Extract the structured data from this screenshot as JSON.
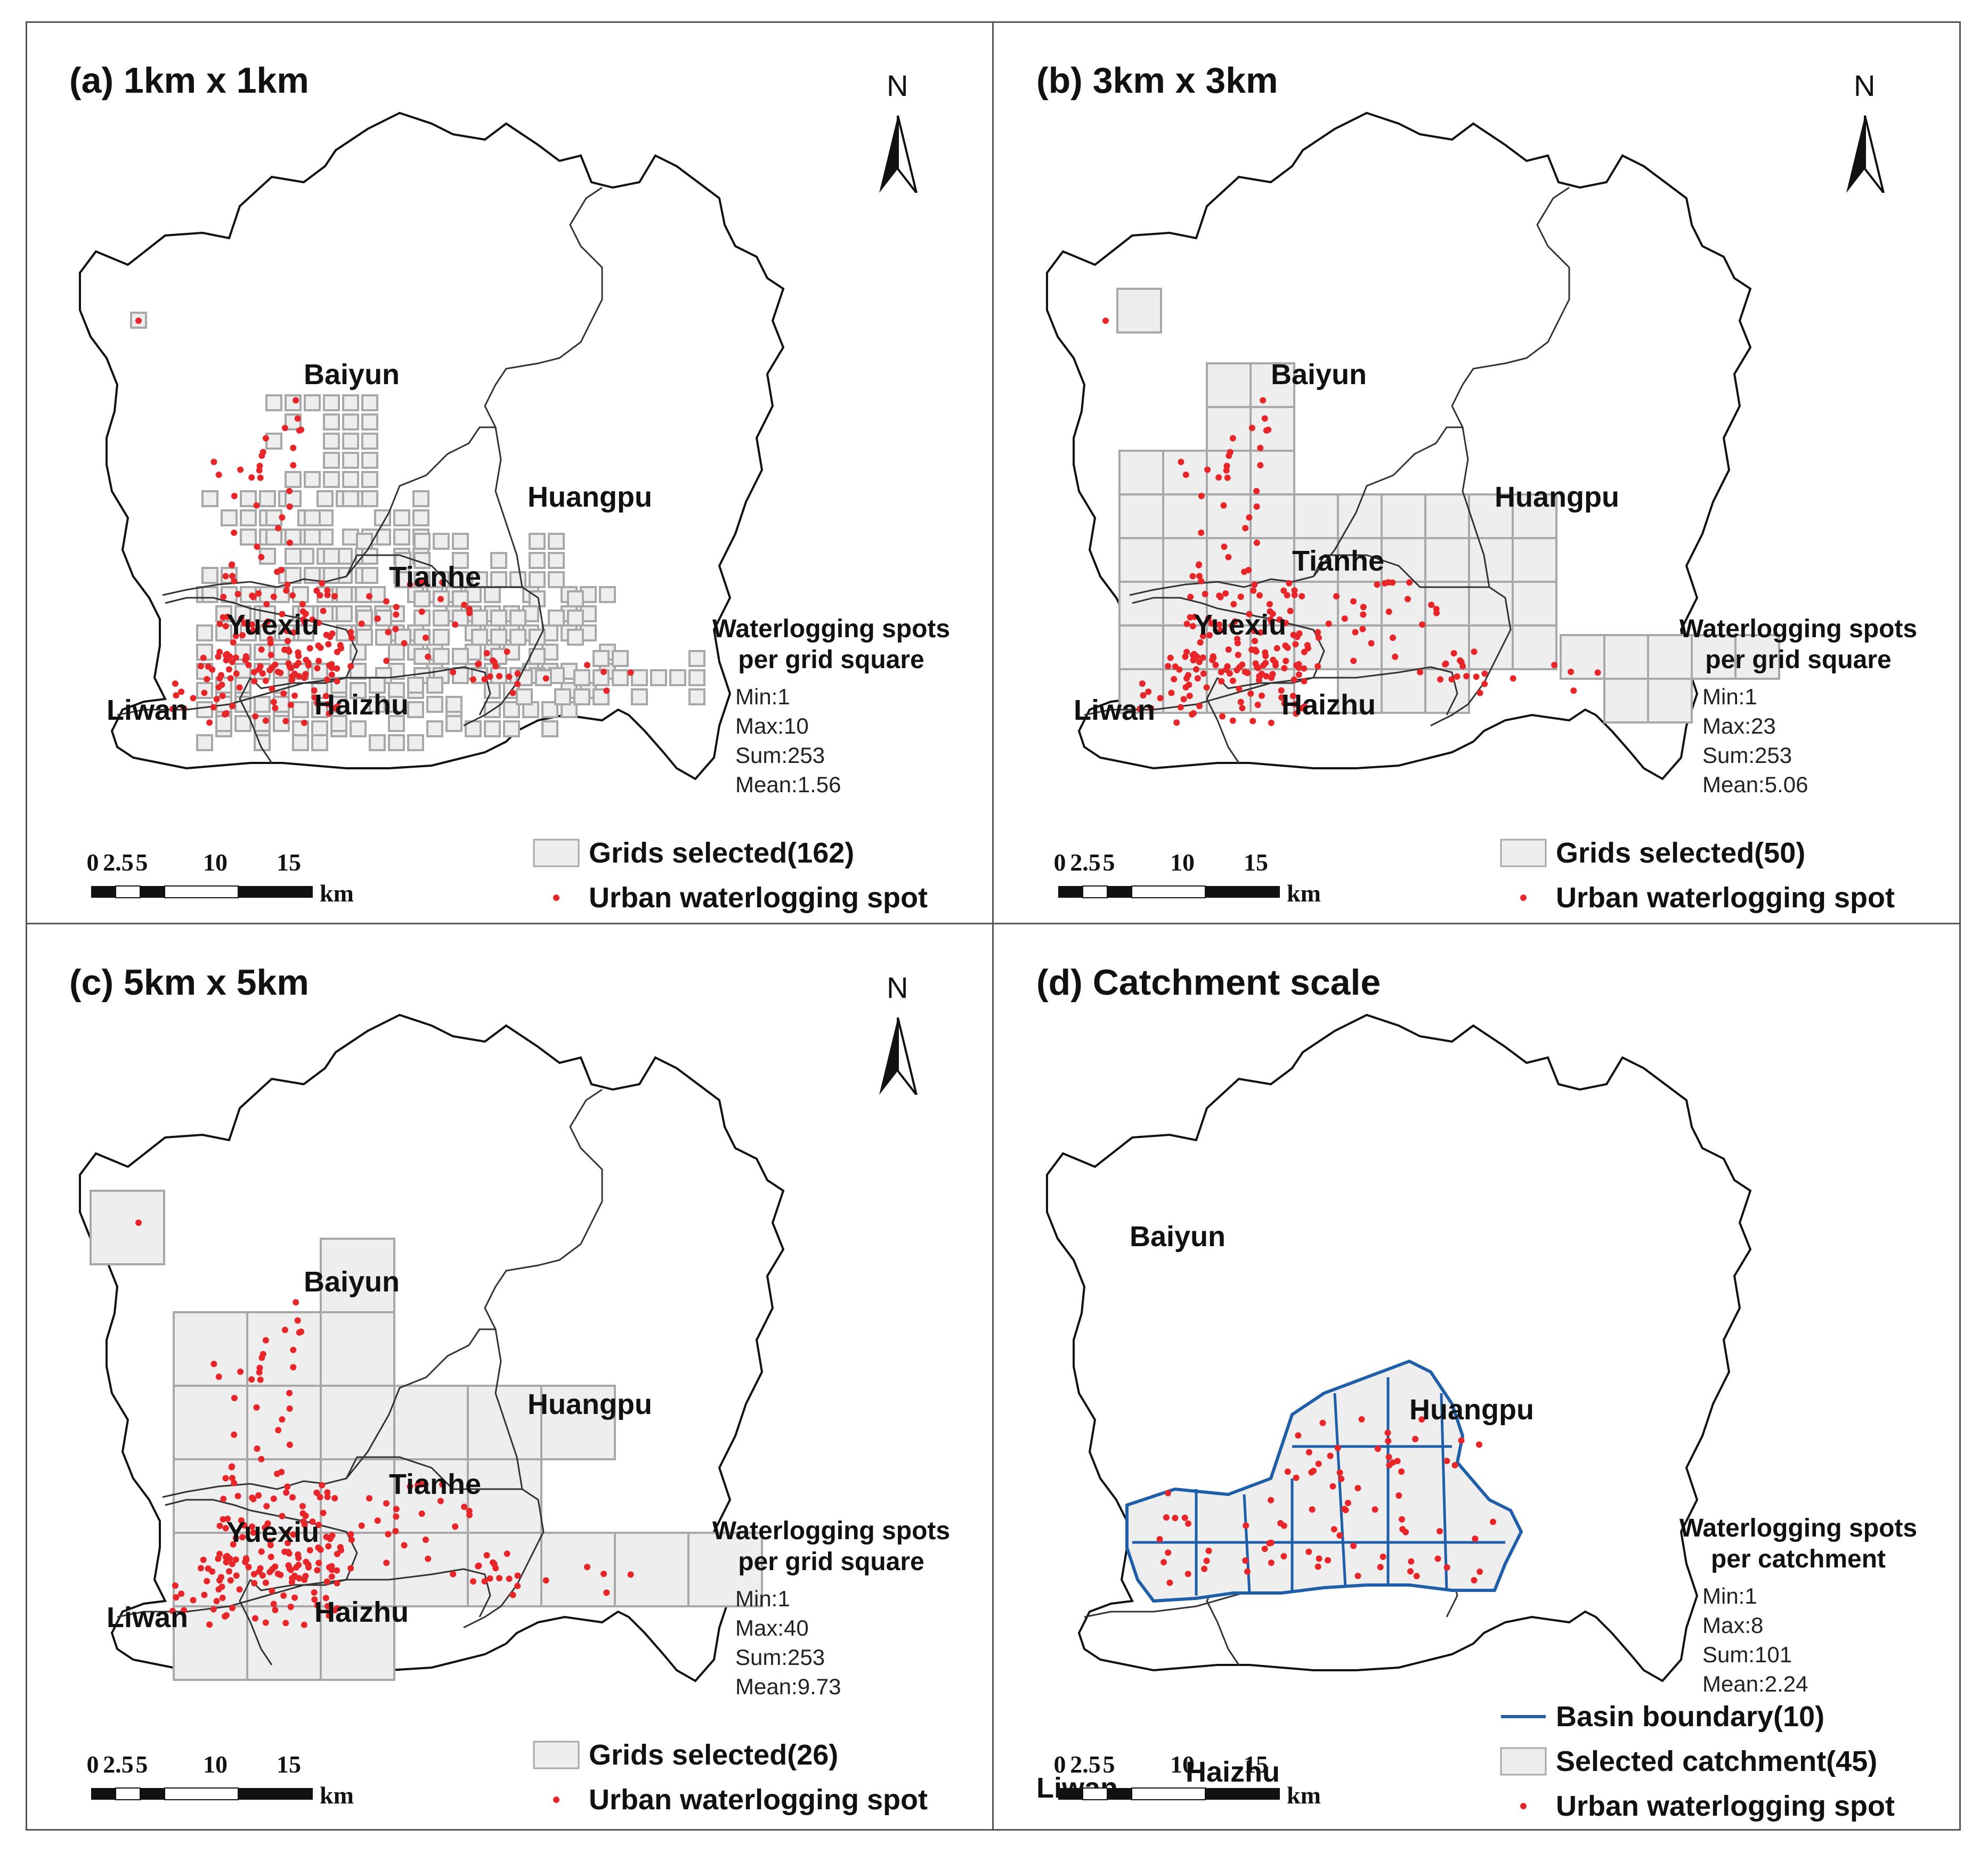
{
  "panels": [
    {
      "title": "(a) 1km x 1km",
      "north": "N",
      "districts": {
        "baiyun": "Baiyun",
        "huangpu": "Huangpu",
        "tianhe": "Tianhe",
        "yuexiu": "Yuexiu",
        "liwan": "Liwan",
        "haizhu": "Haizhu"
      },
      "stats": {
        "header_1": "Waterlogging spots",
        "header_2": "per grid square",
        "min": "Min:1",
        "max": "Max:10",
        "sum": "Sum:253",
        "mean": "Mean:1.56"
      },
      "scale": {
        "t0": "0",
        "t1": "2.5",
        "t2": "5",
        "t3": "10",
        "t4": "15",
        "unit": "km"
      },
      "legend": {
        "grids": "Grids selected(162)",
        "spot": "Urban waterlogging spot"
      }
    },
    {
      "title": "(b) 3km x 3km",
      "north": "N",
      "districts": {
        "baiyun": "Baiyun",
        "huangpu": "Huangpu",
        "tianhe": "Tianhe",
        "yuexiu": "Yuexiu",
        "liwan": "Liwan",
        "haizhu": "Haizhu"
      },
      "stats": {
        "header_1": "Waterlogging spots",
        "header_2": "per grid square",
        "min": "Min:1",
        "max": "Max:23",
        "sum": "Sum:253",
        "mean": "Mean:5.06"
      },
      "scale": {
        "t0": "0",
        "t1": "2.5",
        "t2": "5",
        "t3": "10",
        "t4": "15",
        "unit": "km"
      },
      "legend": {
        "grids": "Grids selected(50)",
        "spot": "Urban waterlogging spot"
      }
    },
    {
      "title": "(c) 5km x 5km",
      "north": "N",
      "districts": {
        "baiyun": "Baiyun",
        "huangpu": "Huangpu",
        "tianhe": "Tianhe",
        "yuexiu": "Yuexiu",
        "liwan": "Liwan",
        "haizhu": "Haizhu"
      },
      "stats": {
        "header_1": "Waterlogging spots",
        "header_2": "per grid square",
        "min": "Min:1",
        "max": "Max:40",
        "sum": "Sum:253",
        "mean": "Mean:9.73"
      },
      "scale": {
        "t0": "0",
        "t1": "2.5",
        "t2": "5",
        "t3": "10",
        "t4": "15",
        "unit": "km"
      },
      "legend": {
        "grids": "Grids selected(26)",
        "spot": "Urban waterlogging spot"
      }
    },
    {
      "title": "(d) Catchment scale",
      "districts": {
        "baiyun": "Baiyun",
        "huangpu": "Huangpu",
        "liwan": "Liwan",
        "haizhu": "Haizhu"
      },
      "stats": {
        "header_1": "Waterlogging spots",
        "header_2": "per catchment",
        "min": "Min:1",
        "max": "Max:8",
        "sum": "Sum:101",
        "mean": "Mean:2.24"
      },
      "scale": {
        "t0": "0",
        "t1": "2.5",
        "t2": "5",
        "t3": "10",
        "t4": "15",
        "unit": "km"
      },
      "legend": {
        "basin": "Basin boundary(10)",
        "catchment": "Selected catchment(45)",
        "spot": "Urban waterlogging spot"
      }
    }
  ],
  "colors": {
    "spot": "#e8262a",
    "grid_fill": "#eeeeee",
    "grid_stroke": "#a8a8a8",
    "basin": "#1f5faa",
    "outline": "#111111"
  }
}
